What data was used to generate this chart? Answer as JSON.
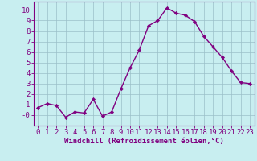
{
  "x": [
    0,
    1,
    2,
    3,
    4,
    5,
    6,
    7,
    8,
    9,
    10,
    11,
    12,
    13,
    14,
    15,
    16,
    17,
    18,
    19,
    20,
    21,
    22,
    23
  ],
  "y": [
    0.7,
    1.1,
    0.9,
    -0.2,
    0.3,
    0.2,
    1.5,
    -0.1,
    0.3,
    2.5,
    4.5,
    6.2,
    8.5,
    9.0,
    10.2,
    9.7,
    9.5,
    8.9,
    7.5,
    6.5,
    5.5,
    4.2,
    3.1,
    3.0
  ],
  "line_color": "#800080",
  "marker": "D",
  "marker_size": 2.2,
  "bg_color": "#c8eef0",
  "grid_color": "#9bbfc8",
  "xlabel": "Windchill (Refroidissement éolien,°C)",
  "ylabel": "",
  "xlim": [
    -0.5,
    23.5
  ],
  "ylim": [
    -1.0,
    10.8
  ],
  "yticks": [
    0,
    1,
    2,
    3,
    4,
    5,
    6,
    7,
    8,
    9,
    10
  ],
  "xticks": [
    0,
    1,
    2,
    3,
    4,
    5,
    6,
    7,
    8,
    9,
    10,
    11,
    12,
    13,
    14,
    15,
    16,
    17,
    18,
    19,
    20,
    21,
    22,
    23
  ],
  "tick_color": "#800080",
  "label_color": "#800080",
  "axis_color": "#800080",
  "font_size": 6.5,
  "xlabel_fontsize": 6.5,
  "line_width": 1.0
}
